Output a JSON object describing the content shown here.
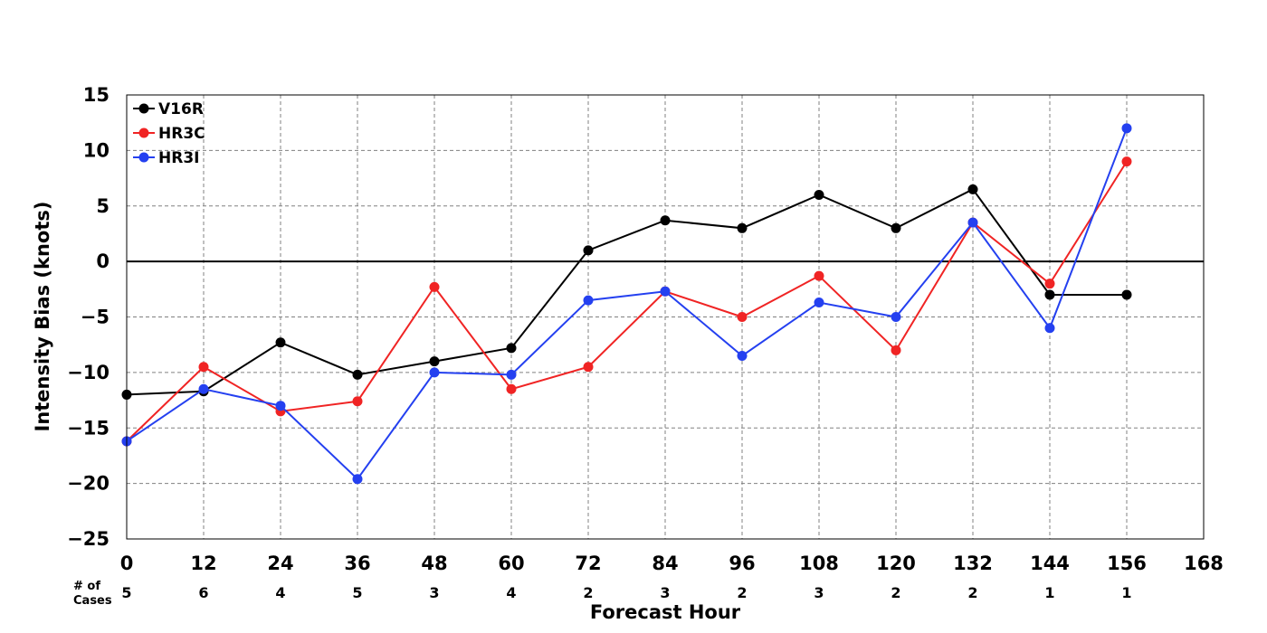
{
  "chart_data": {
    "type": "line",
    "xlabel": "Forecast Hour",
    "ylabel": "Intensity Bias (knots)",
    "xlim": [
      0,
      168
    ],
    "ylim": [
      -25,
      15
    ],
    "x_ticks": [
      0,
      12,
      24,
      36,
      48,
      60,
      72,
      84,
      96,
      108,
      120,
      132,
      144,
      156,
      168
    ],
    "y_ticks": [
      -25,
      -20,
      -15,
      -10,
      -5,
      0,
      5,
      10,
      15
    ],
    "grid": true,
    "zero_line": true,
    "legend_position": "top-left",
    "cases_label_line1": "# of",
    "cases_label_line2": "Cases",
    "cases_x": [
      0,
      12,
      24,
      36,
      48,
      60,
      72,
      84,
      96,
      108,
      120,
      132,
      144,
      156
    ],
    "cases": [
      5,
      6,
      4,
      5,
      3,
      4,
      2,
      3,
      2,
      3,
      2,
      2,
      1,
      1
    ],
    "series": [
      {
        "name": "V16R",
        "color": "#000000",
        "x": [
          0,
          12,
          24,
          36,
          48,
          60,
          72,
          84,
          96,
          108,
          120,
          132,
          144,
          156
        ],
        "y": [
          -12,
          -11.7,
          -7.3,
          -10.2,
          -9,
          -7.8,
          1,
          3.7,
          3,
          6,
          3,
          6.5,
          -3,
          -3
        ]
      },
      {
        "name": "HR3C",
        "color": "#f02424",
        "x": [
          0,
          12,
          24,
          36,
          48,
          60,
          72,
          84,
          96,
          108,
          120,
          132,
          144,
          156
        ],
        "y": [
          -16.2,
          -9.5,
          -13.5,
          -12.6,
          -2.3,
          -11.5,
          -9.5,
          -2.7,
          -5,
          -1.3,
          -8,
          3.5,
          -2,
          9
        ]
      },
      {
        "name": "HR3I",
        "color": "#2440f0",
        "x": [
          0,
          12,
          24,
          36,
          48,
          60,
          72,
          84,
          96,
          108,
          120,
          132,
          144,
          156
        ],
        "y": [
          -16.2,
          -11.5,
          -13,
          -19.6,
          -10,
          -10.2,
          -3.5,
          -2.7,
          -8.5,
          -3.7,
          -5,
          3.5,
          -6,
          12
        ]
      }
    ]
  }
}
